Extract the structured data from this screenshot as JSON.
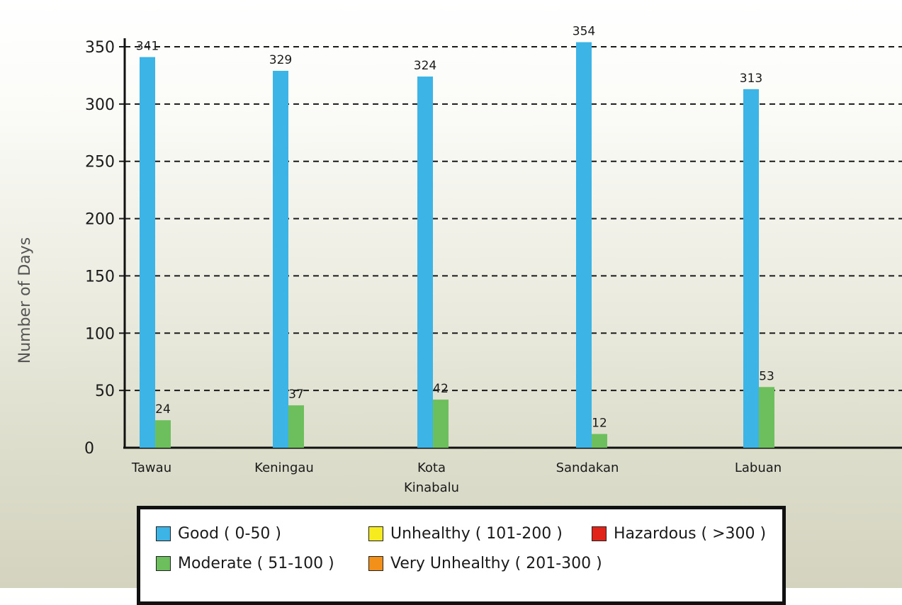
{
  "chart_data": {
    "type": "bar",
    "categories": [
      [
        "Tawau"
      ],
      [
        "Keningau"
      ],
      [
        "Kota",
        "Kinabalu"
      ],
      [
        "Sandakan"
      ],
      [
        "Labuan"
      ]
    ],
    "series": [
      {
        "name": "Good ( 0-50 )",
        "color": "#3cb4e6",
        "values": [
          341,
          329,
          324,
          354,
          313
        ]
      },
      {
        "name": "Moderate ( 51-100 )",
        "color": "#6cbf5c",
        "values": [
          24,
          37,
          42,
          12,
          53
        ]
      }
    ],
    "ylabel": "Number of Days",
    "ylim": [
      0,
      350
    ],
    "yticks": [
      0,
      50,
      100,
      150,
      200,
      250,
      300,
      350
    ],
    "grid": true,
    "legend_position": "bottom"
  },
  "legend": [
    {
      "label": "Good ( 0-50 )",
      "color": "#3cb4e6"
    },
    {
      "label": "Unhealthy ( 101-200 )",
      "color": "#f5eb1e"
    },
    {
      "label": "Hazardous ( >300 )",
      "color": "#e2231a"
    },
    {
      "label": "Moderate ( 51-100 )",
      "color": "#6cbf5c"
    },
    {
      "label": "Very Unhealthy ( 201-300 )",
      "color": "#f39019"
    }
  ]
}
